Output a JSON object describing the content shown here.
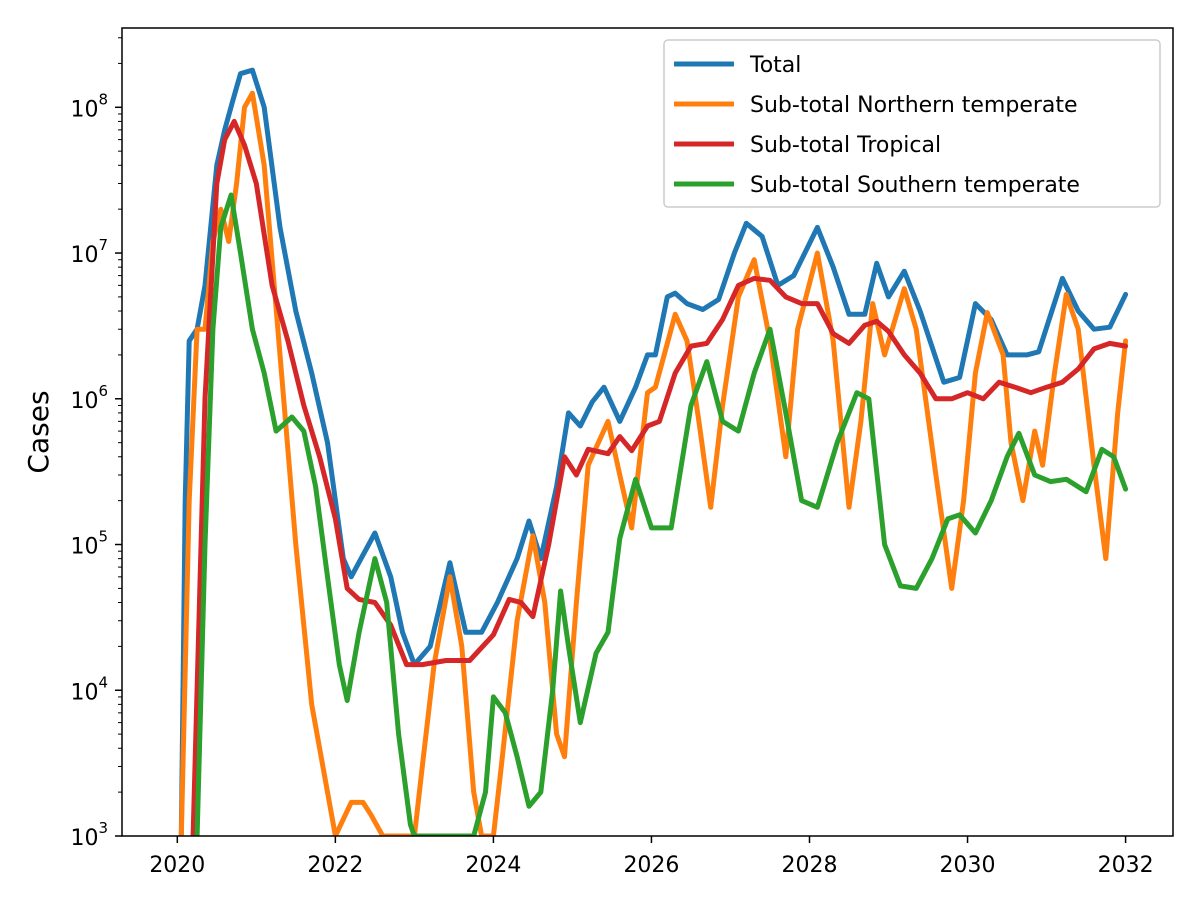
{
  "chart_data": {
    "type": "line",
    "title": "",
    "xlabel": "",
    "ylabel": "Cases",
    "yscale": "log",
    "xlim": [
      2019.3,
      2032.6
    ],
    "ylim": [
      1000,
      350000000
    ],
    "grid": false,
    "legend_position": "top-right",
    "x_ticks": [
      2020,
      2022,
      2024,
      2026,
      2028,
      2030,
      2032
    ],
    "x_tick_labels": [
      "2020",
      "2022",
      "2024",
      "2026",
      "2028",
      "2030",
      "2032"
    ],
    "y_ticks": [
      1000,
      10000,
      100000,
      1000000,
      10000000,
      100000000
    ],
    "y_tick_labels": [
      {
        "base": "10",
        "exp": "3"
      },
      {
        "base": "10",
        "exp": "4"
      },
      {
        "base": "10",
        "exp": "5"
      },
      {
        "base": "10",
        "exp": "6"
      },
      {
        "base": "10",
        "exp": "7"
      },
      {
        "base": "10",
        "exp": "8"
      }
    ],
    "series": [
      {
        "name": "Total",
        "color": "#1f77b4",
        "points": [
          [
            2020.05,
            1000
          ],
          [
            2020.1,
            200000
          ],
          [
            2020.15,
            2500000
          ],
          [
            2020.25,
            3000000
          ],
          [
            2020.35,
            6000000
          ],
          [
            2020.5,
            40000000
          ],
          [
            2020.6,
            70000000
          ],
          [
            2020.7,
            110000000
          ],
          [
            2020.8,
            170000000
          ],
          [
            2020.95,
            180000000
          ],
          [
            2021.1,
            100000000
          ],
          [
            2021.3,
            15000000
          ],
          [
            2021.5,
            4000000
          ],
          [
            2021.7,
            1500000
          ],
          [
            2021.9,
            500000
          ],
          [
            2022.1,
            80000
          ],
          [
            2022.2,
            60000
          ],
          [
            2022.5,
            120000
          ],
          [
            2022.7,
            60000
          ],
          [
            2022.85,
            25000
          ],
          [
            2023.0,
            15000
          ],
          [
            2023.2,
            20000
          ],
          [
            2023.45,
            75000
          ],
          [
            2023.65,
            25000
          ],
          [
            2023.85,
            25000
          ],
          [
            2024.05,
            40000
          ],
          [
            2024.3,
            80000
          ],
          [
            2024.45,
            145000
          ],
          [
            2024.6,
            80000
          ],
          [
            2024.8,
            250000
          ],
          [
            2024.95,
            800000
          ],
          [
            2025.1,
            650000
          ],
          [
            2025.25,
            950000
          ],
          [
            2025.4,
            1200000
          ],
          [
            2025.6,
            700000
          ],
          [
            2025.8,
            1200000
          ],
          [
            2025.95,
            2000000
          ],
          [
            2026.05,
            2000000
          ],
          [
            2026.2,
            5000000
          ],
          [
            2026.3,
            5300000
          ],
          [
            2026.45,
            4500000
          ],
          [
            2026.65,
            4100000
          ],
          [
            2026.85,
            4800000
          ],
          [
            2027.05,
            10000000
          ],
          [
            2027.2,
            16000000
          ],
          [
            2027.4,
            13000000
          ],
          [
            2027.6,
            6000000
          ],
          [
            2027.8,
            7000000
          ],
          [
            2028.1,
            15000000
          ],
          [
            2028.3,
            8000000
          ],
          [
            2028.5,
            3800000
          ],
          [
            2028.7,
            3800000
          ],
          [
            2028.85,
            8500000
          ],
          [
            2029.0,
            5000000
          ],
          [
            2029.2,
            7500000
          ],
          [
            2029.4,
            4000000
          ],
          [
            2029.7,
            1300000
          ],
          [
            2029.9,
            1400000
          ],
          [
            2030.1,
            4500000
          ],
          [
            2030.3,
            3500000
          ],
          [
            2030.5,
            2000000
          ],
          [
            2030.75,
            2000000
          ],
          [
            2030.9,
            2100000
          ],
          [
            2031.2,
            6700000
          ],
          [
            2031.4,
            4000000
          ],
          [
            2031.6,
            3000000
          ],
          [
            2031.8,
            3100000
          ],
          [
            2032.0,
            5200000
          ]
        ]
      },
      {
        "name": "Sub-total Northern temperate",
        "color": "#ff7f0e",
        "points": [
          [
            2020.05,
            1000
          ],
          [
            2020.15,
            200000
          ],
          [
            2020.25,
            3000000
          ],
          [
            2020.35,
            3000000
          ],
          [
            2020.45,
            12000000
          ],
          [
            2020.55,
            20000000
          ],
          [
            2020.65,
            12000000
          ],
          [
            2020.75,
            30000000
          ],
          [
            2020.85,
            100000000
          ],
          [
            2020.95,
            125000000
          ],
          [
            2021.1,
            40000000
          ],
          [
            2021.3,
            2000000
          ],
          [
            2021.5,
            100000
          ],
          [
            2021.7,
            8000
          ],
          [
            2021.9,
            2000
          ],
          [
            2022.0,
            1000
          ],
          [
            2022.2,
            1700
          ],
          [
            2022.35,
            1700
          ],
          [
            2022.45,
            1400
          ],
          [
            2022.6,
            1000
          ],
          [
            2023.0,
            1000
          ],
          [
            2023.1,
            3000
          ],
          [
            2023.25,
            15000
          ],
          [
            2023.45,
            60000
          ],
          [
            2023.6,
            20000
          ],
          [
            2023.75,
            2000
          ],
          [
            2023.85,
            1000
          ],
          [
            2024.0,
            1000
          ],
          [
            2024.1,
            3000
          ],
          [
            2024.3,
            30000
          ],
          [
            2024.5,
            115000
          ],
          [
            2024.65,
            40000
          ],
          [
            2024.8,
            5000
          ],
          [
            2024.9,
            3500
          ],
          [
            2025.05,
            40000
          ],
          [
            2025.2,
            350000
          ],
          [
            2025.45,
            700000
          ],
          [
            2025.6,
            300000
          ],
          [
            2025.75,
            130000
          ],
          [
            2025.95,
            1100000
          ],
          [
            2026.05,
            1200000
          ],
          [
            2026.3,
            3800000
          ],
          [
            2026.45,
            2500000
          ],
          [
            2026.6,
            700000
          ],
          [
            2026.75,
            180000
          ],
          [
            2026.9,
            900000
          ],
          [
            2027.1,
            5000000
          ],
          [
            2027.3,
            9000000
          ],
          [
            2027.5,
            2500000
          ],
          [
            2027.7,
            400000
          ],
          [
            2027.85,
            3000000
          ],
          [
            2028.1,
            10000000
          ],
          [
            2028.3,
            2500000
          ],
          [
            2028.5,
            180000
          ],
          [
            2028.65,
            700000
          ],
          [
            2028.8,
            4500000
          ],
          [
            2028.95,
            2000000
          ],
          [
            2029.2,
            5700000
          ],
          [
            2029.35,
            3000000
          ],
          [
            2029.6,
            300000
          ],
          [
            2029.8,
            50000
          ],
          [
            2029.95,
            200000
          ],
          [
            2030.1,
            1500000
          ],
          [
            2030.25,
            3900000
          ],
          [
            2030.45,
            2000000
          ],
          [
            2030.55,
            500000
          ],
          [
            2030.7,
            200000
          ],
          [
            2030.85,
            600000
          ],
          [
            2030.95,
            350000
          ],
          [
            2031.1,
            1500000
          ],
          [
            2031.25,
            5200000
          ],
          [
            2031.4,
            3000000
          ],
          [
            2031.6,
            350000
          ],
          [
            2031.75,
            80000
          ],
          [
            2031.9,
            800000
          ],
          [
            2032.0,
            2500000
          ]
        ]
      },
      {
        "name": "Sub-total Tropical",
        "color": "#d62728",
        "points": [
          [
            2020.2,
            1000
          ],
          [
            2020.35,
            1000000
          ],
          [
            2020.5,
            30000000
          ],
          [
            2020.6,
            60000000
          ],
          [
            2020.72,
            80000000
          ],
          [
            2020.85,
            55000000
          ],
          [
            2021.0,
            30000000
          ],
          [
            2021.2,
            6000000
          ],
          [
            2021.4,
            2500000
          ],
          [
            2021.6,
            900000
          ],
          [
            2021.8,
            400000
          ],
          [
            2022.0,
            150000
          ],
          [
            2022.15,
            50000
          ],
          [
            2022.3,
            42000
          ],
          [
            2022.5,
            40000
          ],
          [
            2022.7,
            28000
          ],
          [
            2022.9,
            15000
          ],
          [
            2023.1,
            15000
          ],
          [
            2023.4,
            16000
          ],
          [
            2023.7,
            16000
          ],
          [
            2024.0,
            24000
          ],
          [
            2024.2,
            42000
          ],
          [
            2024.35,
            40000
          ],
          [
            2024.5,
            32000
          ],
          [
            2024.7,
            100000
          ],
          [
            2024.9,
            400000
          ],
          [
            2025.05,
            300000
          ],
          [
            2025.2,
            450000
          ],
          [
            2025.45,
            420000
          ],
          [
            2025.6,
            550000
          ],
          [
            2025.75,
            440000
          ],
          [
            2025.95,
            650000
          ],
          [
            2026.1,
            700000
          ],
          [
            2026.3,
            1500000
          ],
          [
            2026.5,
            2300000
          ],
          [
            2026.7,
            2400000
          ],
          [
            2026.9,
            3500000
          ],
          [
            2027.1,
            6000000
          ],
          [
            2027.3,
            6700000
          ],
          [
            2027.5,
            6500000
          ],
          [
            2027.7,
            5000000
          ],
          [
            2027.9,
            4500000
          ],
          [
            2028.1,
            4500000
          ],
          [
            2028.3,
            2800000
          ],
          [
            2028.5,
            2400000
          ],
          [
            2028.7,
            3200000
          ],
          [
            2028.85,
            3400000
          ],
          [
            2029.0,
            2900000
          ],
          [
            2029.2,
            2000000
          ],
          [
            2029.4,
            1500000
          ],
          [
            2029.6,
            1000000
          ],
          [
            2029.8,
            1000000
          ],
          [
            2030.0,
            1100000
          ],
          [
            2030.2,
            1000000
          ],
          [
            2030.4,
            1300000
          ],
          [
            2030.6,
            1200000
          ],
          [
            2030.8,
            1100000
          ],
          [
            2031.0,
            1200000
          ],
          [
            2031.2,
            1300000
          ],
          [
            2031.4,
            1600000
          ],
          [
            2031.6,
            2200000
          ],
          [
            2031.8,
            2400000
          ],
          [
            2032.0,
            2300000
          ]
        ]
      },
      {
        "name": "Sub-total Southern temperate",
        "color": "#2ca02c",
        "points": [
          [
            2020.25,
            1000
          ],
          [
            2020.35,
            100000
          ],
          [
            2020.45,
            3000000
          ],
          [
            2020.55,
            15000000
          ],
          [
            2020.68,
            25000000
          ],
          [
            2020.8,
            10000000
          ],
          [
            2020.95,
            3000000
          ],
          [
            2021.1,
            1500000
          ],
          [
            2021.25,
            600000
          ],
          [
            2021.45,
            750000
          ],
          [
            2021.6,
            600000
          ],
          [
            2021.75,
            250000
          ],
          [
            2021.9,
            60000
          ],
          [
            2022.05,
            15000
          ],
          [
            2022.15,
            8500
          ],
          [
            2022.3,
            25000
          ],
          [
            2022.5,
            80000
          ],
          [
            2022.65,
            40000
          ],
          [
            2022.8,
            5000
          ],
          [
            2022.95,
            1200
          ],
          [
            2023.0,
            1000
          ],
          [
            2023.75,
            1000
          ],
          [
            2023.9,
            2000
          ],
          [
            2024.0,
            9000
          ],
          [
            2024.15,
            7000
          ],
          [
            2024.3,
            3500
          ],
          [
            2024.45,
            1600
          ],
          [
            2024.6,
            2000
          ],
          [
            2024.75,
            10000
          ],
          [
            2024.85,
            48000
          ],
          [
            2024.95,
            20000
          ],
          [
            2025.1,
            6000
          ],
          [
            2025.3,
            18000
          ],
          [
            2025.45,
            25000
          ],
          [
            2025.6,
            110000
          ],
          [
            2025.8,
            280000
          ],
          [
            2026.0,
            130000
          ],
          [
            2026.25,
            130000
          ],
          [
            2026.5,
            900000
          ],
          [
            2026.7,
            1800000
          ],
          [
            2026.9,
            700000
          ],
          [
            2027.1,
            600000
          ],
          [
            2027.3,
            1500000
          ],
          [
            2027.5,
            3000000
          ],
          [
            2027.7,
            800000
          ],
          [
            2027.9,
            200000
          ],
          [
            2028.1,
            180000
          ],
          [
            2028.35,
            500000
          ],
          [
            2028.6,
            1100000
          ],
          [
            2028.75,
            1000000
          ],
          [
            2028.95,
            100000
          ],
          [
            2029.15,
            52000
          ],
          [
            2029.35,
            50000
          ],
          [
            2029.55,
            80000
          ],
          [
            2029.75,
            150000
          ],
          [
            2029.9,
            160000
          ],
          [
            2030.1,
            120000
          ],
          [
            2030.3,
            200000
          ],
          [
            2030.5,
            400000
          ],
          [
            2030.65,
            580000
          ],
          [
            2030.85,
            300000
          ],
          [
            2031.05,
            270000
          ],
          [
            2031.25,
            280000
          ],
          [
            2031.5,
            230000
          ],
          [
            2031.7,
            450000
          ],
          [
            2031.85,
            400000
          ],
          [
            2032.0,
            240000
          ]
        ]
      }
    ]
  }
}
